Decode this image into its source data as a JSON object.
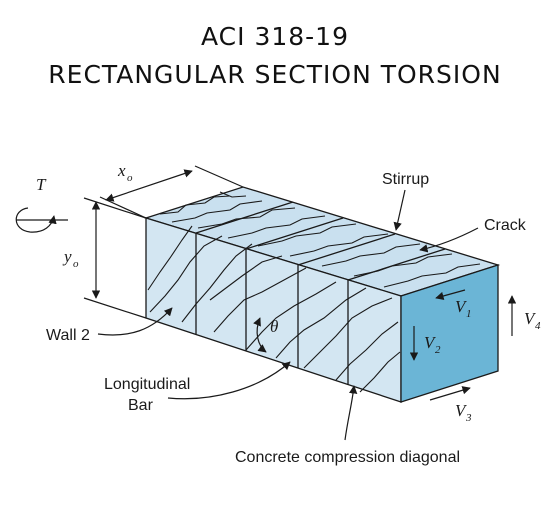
{
  "title": {
    "line1": "ACI 318-19",
    "line2": "RECTANGULAR SECTION TORSION"
  },
  "diagram": {
    "labels": {
      "torque": "T",
      "width": "x",
      "width_sub": "o",
      "height": "y",
      "height_sub": "o",
      "stirrup": "Stirrup",
      "crack": "Crack",
      "wall": "Wall 2",
      "angle": "θ",
      "bar_line1": "Longitudinal",
      "bar_line2": "Bar",
      "compression": "Concrete compression diagonal",
      "v1": "V",
      "v1_sub": "1",
      "v2": "V",
      "v2_sub": "2",
      "v3": "V",
      "v3_sub": "3",
      "v4": "V",
      "v4_sub": "4"
    },
    "colors": {
      "concrete": "#d3e6f2",
      "top_face": "#c9e0ef",
      "end_face": "#6bb5d6",
      "line": "#1a1a1a"
    }
  }
}
